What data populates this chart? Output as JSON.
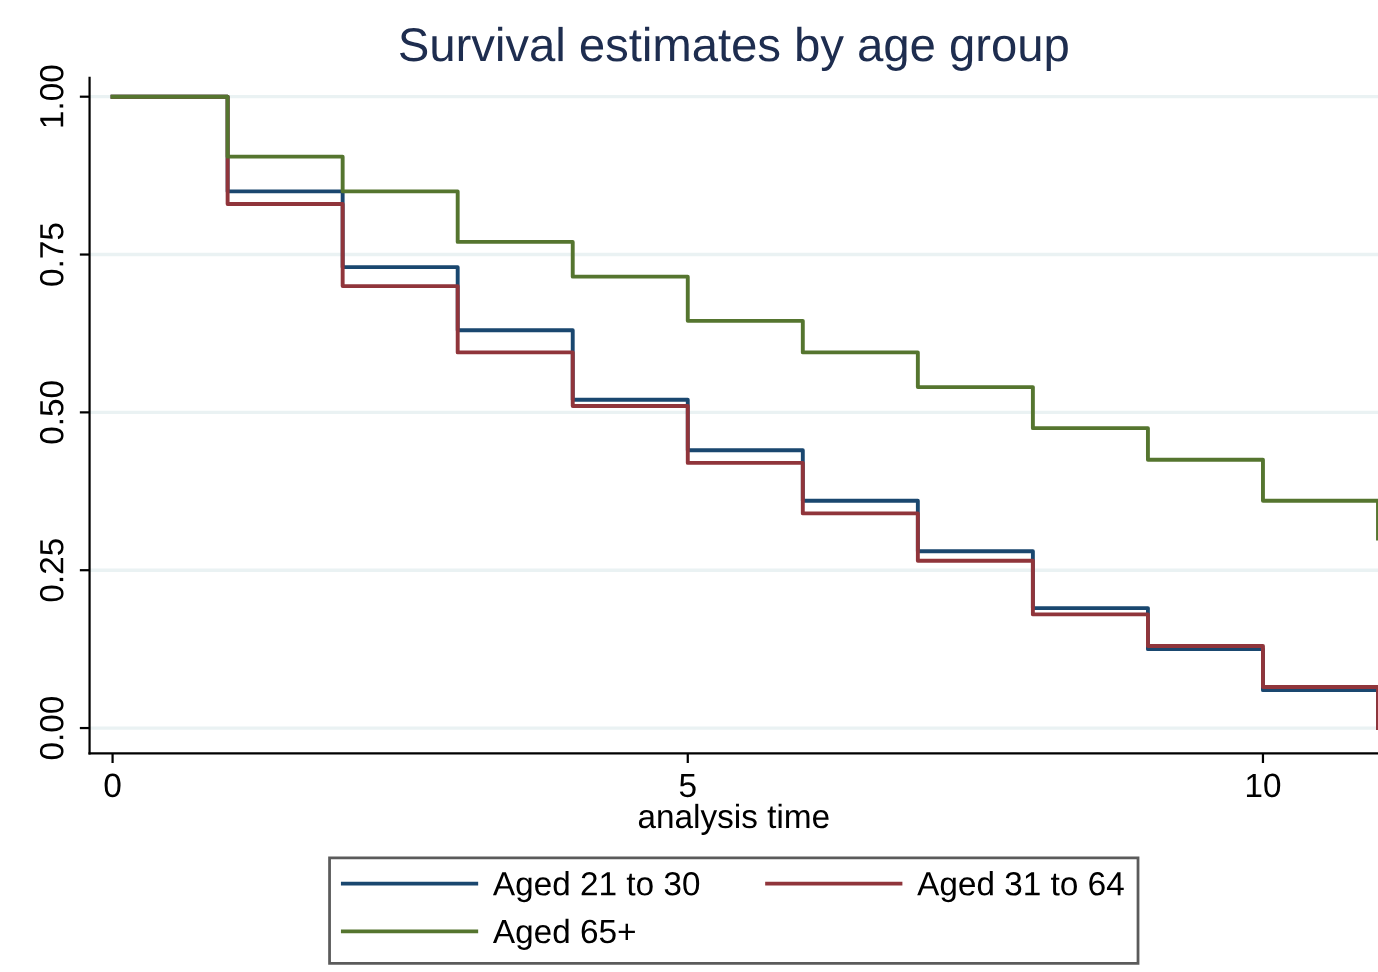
{
  "chart_data": {
    "type": "step",
    "title": "Survival estimates by age group",
    "xlabel": "analysis time",
    "x": [
      0,
      1,
      2,
      3,
      4,
      5,
      6,
      7,
      8,
      9,
      10,
      11
    ],
    "series": [
      {
        "name": "Aged 21 to 30",
        "color": "#1a476f",
        "values": [
          1,
          0.85,
          0.73,
          0.63,
          0.52,
          0.44,
          0.36,
          0.28,
          0.19,
          0.125,
          0.06,
          0.0
        ]
      },
      {
        "name": "Aged 31 to 64",
        "color": "#90353b",
        "values": [
          1,
          0.83,
          0.7,
          0.595,
          0.51,
          0.42,
          0.34,
          0.265,
          0.18,
          0.13,
          0.065,
          0.0
        ]
      },
      {
        "name": "Aged 65+",
        "color": "#55752f",
        "values": [
          1,
          0.905,
          0.85,
          0.77,
          0.715,
          0.645,
          0.595,
          0.54,
          0.475,
          0.425,
          0.36,
          0.3
        ]
      }
    ],
    "xlim": [
      -0.2,
      11
    ],
    "xticks": [
      0,
      5,
      10
    ],
    "ylim": [
      -0.04,
      1.03
    ],
    "yticks": [
      {
        "value": 0,
        "label": "0.00"
      },
      {
        "value": 0.25,
        "label": "0.25"
      },
      {
        "value": 0.5,
        "label": "0.50"
      },
      {
        "value": 0.75,
        "label": "0.75"
      },
      {
        "value": 1,
        "label": "1.00"
      }
    ],
    "grid": "y",
    "legend": "bottom",
    "line_style": "solid"
  }
}
